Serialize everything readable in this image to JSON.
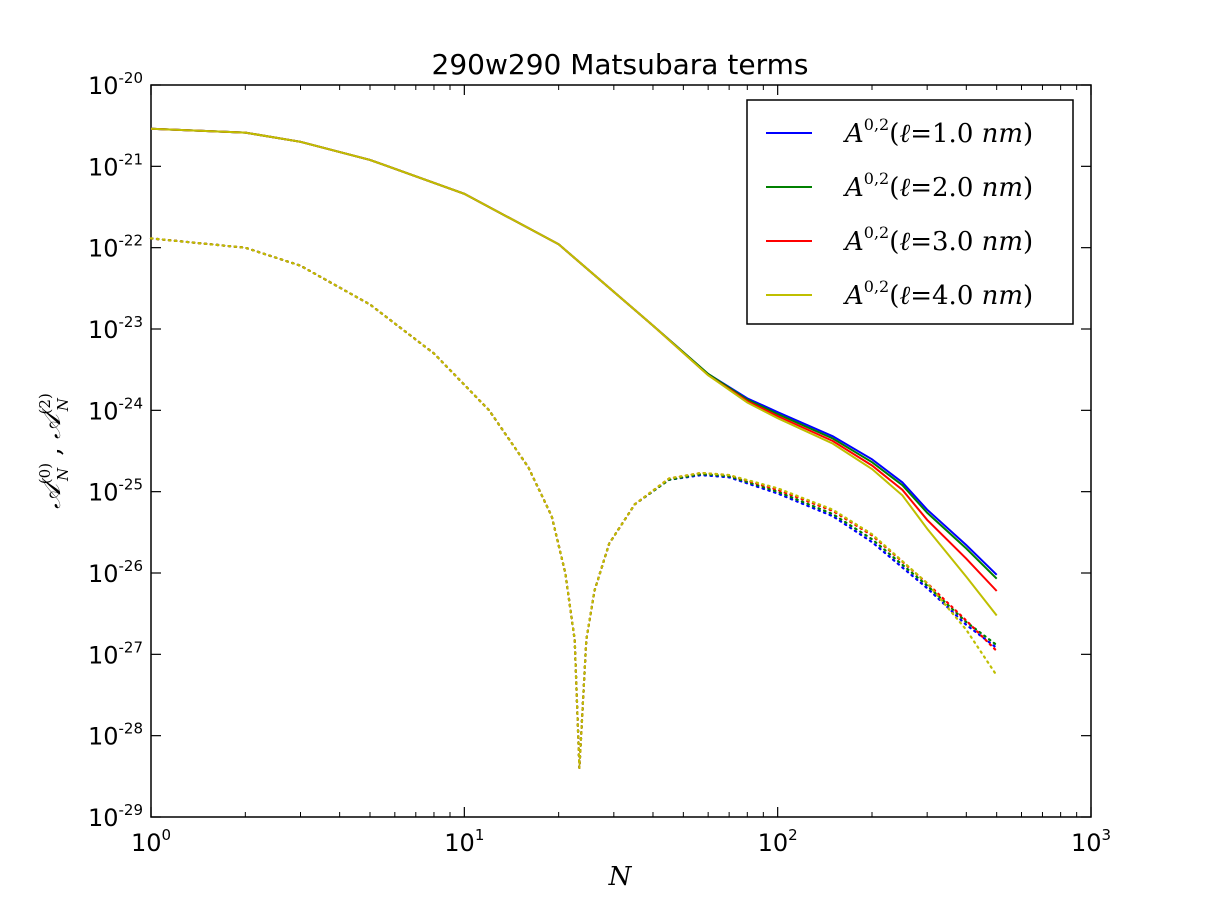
{
  "chart_data": {
    "type": "line",
    "title": "290w290 Matsubara terms",
    "xlabel": "N",
    "ylabel": "A_N^(0) , A_N^(2)",
    "xscale": "log",
    "yscale": "log",
    "xlim": [
      1,
      1000
    ],
    "ylim": [
      1e-29,
      1e-20
    ],
    "x_ticks": [
      {
        "base": "10",
        "exp": "0",
        "value": 1
      },
      {
        "base": "10",
        "exp": "1",
        "value": 10
      },
      {
        "base": "10",
        "exp": "2",
        "value": 100
      },
      {
        "base": "10",
        "exp": "3",
        "value": 1000
      }
    ],
    "y_ticks": [
      {
        "base": "10",
        "exp": "-20",
        "value": 1e-20
      },
      {
        "base": "10",
        "exp": "-21",
        "value": 1e-21
      },
      {
        "base": "10",
        "exp": "-22",
        "value": 1e-22
      },
      {
        "base": "10",
        "exp": "-23",
        "value": 1e-23
      },
      {
        "base": "10",
        "exp": "-24",
        "value": 1e-24
      },
      {
        "base": "10",
        "exp": "-25",
        "value": 1e-25
      },
      {
        "base": "10",
        "exp": "-26",
        "value": 1e-26
      },
      {
        "base": "10",
        "exp": "-27",
        "value": 1e-27
      },
      {
        "base": "10",
        "exp": "-28",
        "value": 1e-28
      },
      {
        "base": "10",
        "exp": "-29",
        "value": 1e-29
      }
    ],
    "grid": false,
    "legend_position": "top-right",
    "series": [
      {
        "name": "A^{0,2} (ℓ=1.0 nm)",
        "legend_label": "1.0",
        "color": "#0000ff",
        "solid": {
          "x": [
            1,
            2,
            3,
            5,
            10,
            20,
            40,
            60,
            80,
            100,
            150,
            200,
            250,
            300,
            400,
            500
          ],
          "y": [
            2.9e-21,
            2.6e-21,
            2e-21,
            1.2e-21,
            4.6e-22,
            1.1e-22,
            1.1e-23,
            2.8e-24,
            1.4e-24,
            9.5e-25,
            4.8e-25,
            2.5e-25,
            1.3e-25,
            6e-26,
            2.2e-26,
            9.5e-27
          ]
        },
        "dotted": {
          "x": [
            1,
            2,
            3,
            5,
            8,
            12,
            16,
            19,
            21,
            22.5,
            23.3,
            24.5,
            26,
            29,
            35,
            45,
            57,
            70,
            100,
            150,
            200,
            300,
            400,
            500
          ],
          "y": [
            1.3e-22,
            1e-22,
            6e-23,
            2e-23,
            5e-24,
            1e-24,
            2e-25,
            5e-26,
            1e-26,
            1.5e-27,
            4e-29,
            1.5e-27,
            6e-27,
            2.3e-26,
            7e-26,
            1.4e-25,
            1.6e-25,
            1.5e-25,
            9.5e-26,
            5e-26,
            2.4e-26,
            6.5e-27,
            2.3e-27,
            1.2e-27
          ]
        }
      },
      {
        "name": "A^{0,2} (ℓ=2.0 nm)",
        "legend_label": "2.0",
        "color": "#008000",
        "solid": {
          "x": [
            1,
            2,
            3,
            5,
            10,
            20,
            40,
            60,
            80,
            100,
            150,
            200,
            250,
            300,
            400,
            500
          ],
          "y": [
            2.9e-21,
            2.6e-21,
            2e-21,
            1.2e-21,
            4.6e-22,
            1.1e-22,
            1.1e-23,
            2.8e-24,
            1.35e-24,
            9e-25,
            4.5e-25,
            2.3e-25,
            1.2e-25,
            5.5e-26,
            2e-26,
            8.5e-27
          ]
        },
        "dotted": {
          "x": [
            1,
            2,
            3,
            5,
            8,
            12,
            16,
            19,
            21,
            22.5,
            23.3,
            24.5,
            26,
            29,
            35,
            45,
            57,
            70,
            100,
            150,
            200,
            300,
            400,
            500
          ],
          "y": [
            1.3e-22,
            1e-22,
            6e-23,
            2e-23,
            5e-24,
            1e-24,
            2e-25,
            5e-26,
            1e-26,
            1.5e-27,
            4e-29,
            1.5e-27,
            6e-27,
            2.3e-26,
            7e-26,
            1.4e-25,
            1.65e-25,
            1.55e-25,
            1e-25,
            5.3e-26,
            2.6e-26,
            7e-27,
            2.5e-27,
            1.3e-27
          ]
        }
      },
      {
        "name": "A^{0,2} (ℓ=3.0 nm)",
        "legend_label": "3.0",
        "color": "#ff0000",
        "solid": {
          "x": [
            1,
            2,
            3,
            5,
            10,
            20,
            40,
            60,
            80,
            100,
            150,
            200,
            250,
            300,
            400,
            500
          ],
          "y": [
            2.9e-21,
            2.6e-21,
            2e-21,
            1.2e-21,
            4.6e-22,
            1.1e-22,
            1.1e-23,
            2.7e-24,
            1.3e-24,
            8.5e-25,
            4.2e-25,
            2.1e-25,
            1.05e-25,
            4.5e-26,
            1.5e-26,
            6e-27
          ]
        },
        "dotted": {
          "x": [
            1,
            2,
            3,
            5,
            8,
            12,
            16,
            19,
            21,
            22.5,
            23.3,
            24.5,
            26,
            29,
            35,
            45,
            57,
            70,
            100,
            150,
            200,
            300,
            400,
            500
          ],
          "y": [
            1.3e-22,
            1e-22,
            6e-23,
            2e-23,
            5e-24,
            1e-24,
            2e-25,
            5e-26,
            1e-26,
            1.5e-27,
            4e-29,
            1.5e-27,
            6e-27,
            2.3e-26,
            7e-26,
            1.45e-25,
            1.7e-25,
            1.6e-25,
            1.05e-25,
            5.8e-26,
            2.9e-26,
            7.5e-27,
            2.6e-27,
            1.1e-27
          ]
        }
      },
      {
        "name": "A^{0,2} (ℓ=4.0 nm)",
        "legend_label": "4.0",
        "color": "#bfbf00",
        "solid": {
          "x": [
            1,
            2,
            3,
            5,
            10,
            20,
            40,
            60,
            80,
            100,
            150,
            200,
            250,
            300,
            400,
            500
          ],
          "y": [
            2.9e-21,
            2.6e-21,
            2e-21,
            1.2e-21,
            4.6e-22,
            1.1e-22,
            1.1e-23,
            2.7e-24,
            1.25e-24,
            8e-25,
            3.9e-25,
            1.9e-25,
            9e-26,
            3.5e-26,
            9e-27,
            3e-27
          ]
        },
        "dotted": {
          "x": [
            1,
            2,
            3,
            5,
            8,
            12,
            16,
            19,
            21,
            22.5,
            23.3,
            24.5,
            26,
            29,
            35,
            45,
            57,
            70,
            100,
            150,
            200,
            300,
            400,
            500
          ],
          "y": [
            1.3e-22,
            1e-22,
            6e-23,
            2e-23,
            5e-24,
            1e-24,
            2e-25,
            5e-26,
            1e-26,
            1.5e-27,
            4e-29,
            1.5e-27,
            6e-27,
            2.3e-26,
            7e-26,
            1.45e-25,
            1.7e-25,
            1.6e-25,
            1.1e-25,
            6e-26,
            3e-26,
            7.5e-27,
            2e-27,
            5.5e-28
          ]
        }
      }
    ]
  }
}
